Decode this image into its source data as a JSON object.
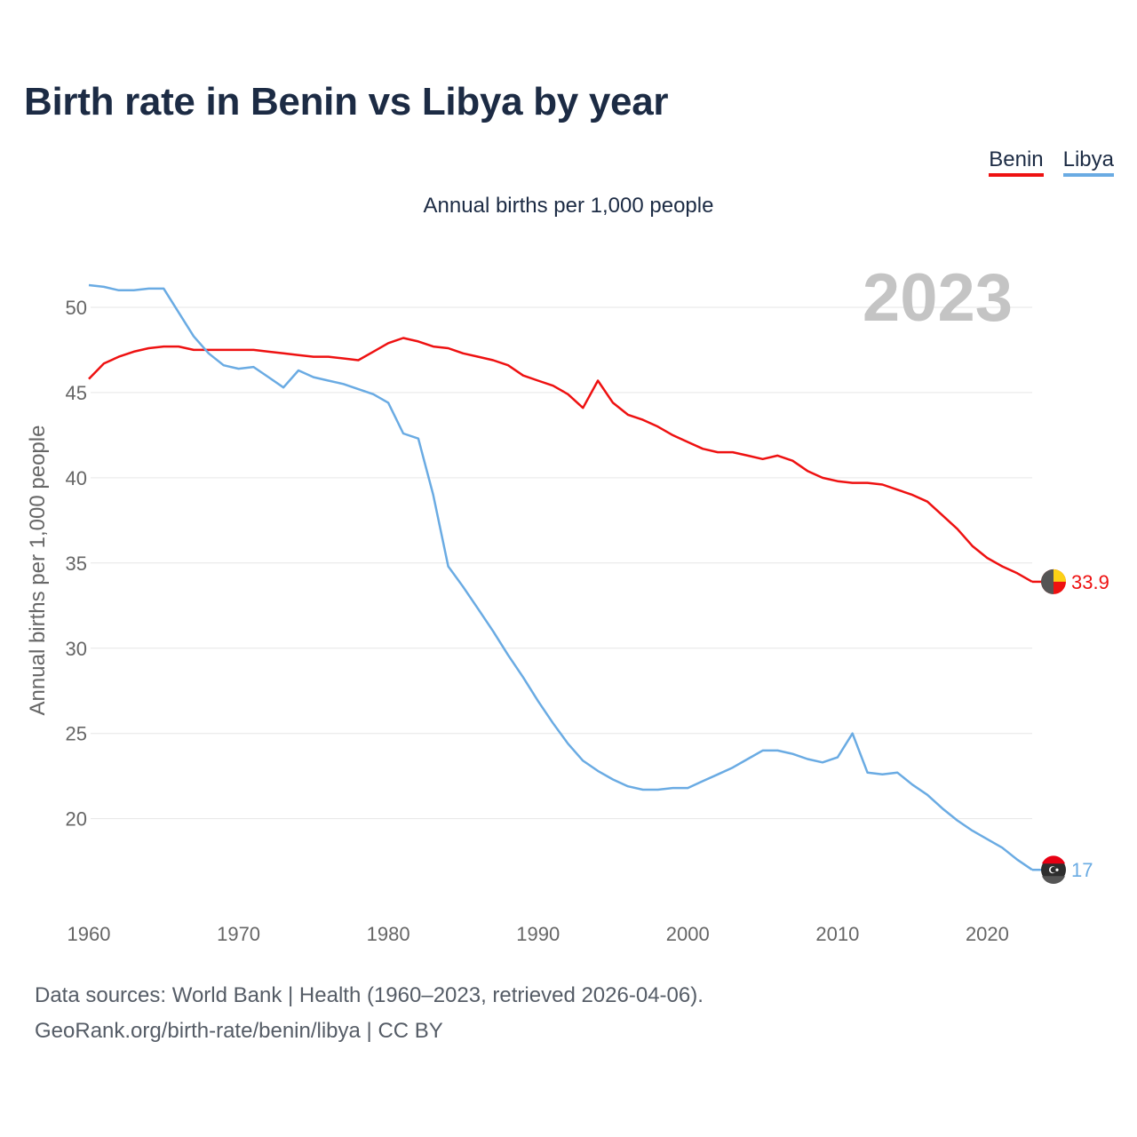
{
  "title": "Birth rate in Benin vs Libya by year",
  "subtitle": "Annual births per 1,000 people",
  "legend": [
    "Benin",
    "Libya"
  ],
  "source": {
    "line1": "Data sources: World Bank | Health (1960–2023, retrieved 2026-04-06).",
    "line2": "GeoRank.org/birth-rate/benin/libya | CC BY"
  },
  "colors": {
    "benin": "#ee1111",
    "libya": "#6aabe3",
    "grid": "#e6e6e6",
    "axis_text": "#666666",
    "year_watermark": "#c4c4c4"
  },
  "chart_data": {
    "type": "line",
    "title": "Birth rate in Benin vs Libya by year",
    "ylabel": "Annual births per 1,000 people",
    "xlabel": "",
    "year_label": "2023",
    "xlim": [
      1960,
      2023
    ],
    "ylim": [
      15.5,
      52.5
    ],
    "xticks": [
      1960,
      1970,
      1980,
      1990,
      2000,
      2010,
      2020
    ],
    "yticks": [
      20,
      25,
      30,
      35,
      40,
      45,
      50
    ],
    "x": [
      1960,
      1961,
      1962,
      1963,
      1964,
      1965,
      1966,
      1967,
      1968,
      1969,
      1970,
      1971,
      1972,
      1973,
      1974,
      1975,
      1976,
      1977,
      1978,
      1979,
      1980,
      1981,
      1982,
      1983,
      1984,
      1985,
      1986,
      1987,
      1988,
      1989,
      1990,
      1991,
      1992,
      1993,
      1994,
      1995,
      1996,
      1997,
      1998,
      1999,
      2000,
      2001,
      2002,
      2003,
      2004,
      2005,
      2006,
      2007,
      2008,
      2009,
      2010,
      2011,
      2012,
      2013,
      2014,
      2015,
      2016,
      2017,
      2018,
      2019,
      2020,
      2021,
      2022,
      2023
    ],
    "series": [
      {
        "name": "Benin",
        "end_label": "33.9",
        "values": [
          45.8,
          46.7,
          47.1,
          47.4,
          47.6,
          47.7,
          47.7,
          47.5,
          47.5,
          47.5,
          47.5,
          47.5,
          47.4,
          47.3,
          47.2,
          47.1,
          47.1,
          47.0,
          46.9,
          47.4,
          47.9,
          48.2,
          48.0,
          47.7,
          47.6,
          47.3,
          47.1,
          46.9,
          46.6,
          46.0,
          45.7,
          45.4,
          44.9,
          44.1,
          45.7,
          44.4,
          43.7,
          43.4,
          43.0,
          42.5,
          42.1,
          41.7,
          41.5,
          41.5,
          41.3,
          41.1,
          41.3,
          41.0,
          40.4,
          40.0,
          39.8,
          39.7,
          39.7,
          39.6,
          39.3,
          39.0,
          38.6,
          37.8,
          37.0,
          36.0,
          35.3,
          34.8,
          34.4,
          33.9
        ]
      },
      {
        "name": "Libya",
        "end_label": "17",
        "values": [
          51.3,
          51.2,
          51.0,
          51.0,
          51.1,
          51.1,
          49.7,
          48.3,
          47.3,
          46.6,
          46.4,
          46.5,
          45.9,
          45.3,
          46.3,
          45.9,
          45.7,
          45.5,
          45.2,
          44.9,
          44.4,
          42.6,
          42.3,
          39.0,
          34.8,
          33.6,
          32.3,
          31.0,
          29.6,
          28.3,
          26.9,
          25.6,
          24.4,
          23.4,
          22.8,
          22.3,
          21.9,
          21.7,
          21.7,
          21.8,
          21.8,
          22.2,
          22.6,
          23.0,
          23.5,
          24.0,
          24.0,
          23.8,
          23.5,
          23.3,
          23.6,
          25.0,
          22.7,
          22.6,
          22.7,
          22.0,
          21.4,
          20.6,
          19.9,
          19.3,
          18.8,
          18.3,
          17.6,
          17.0
        ]
      }
    ]
  }
}
